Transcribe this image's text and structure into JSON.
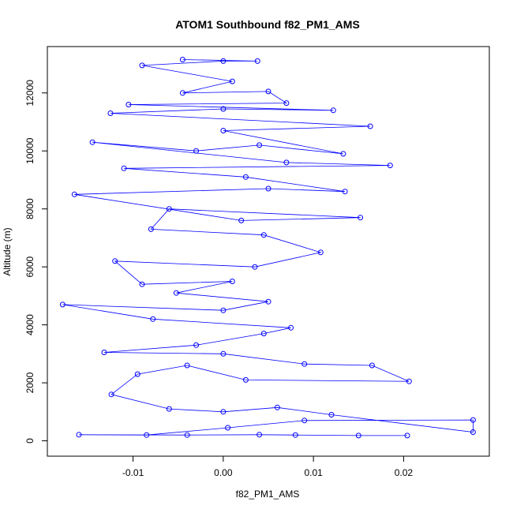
{
  "chart_data": {
    "type": "scatter",
    "title": "ATOM1 Southbound f82_PM1_AMS",
    "xlabel": "f82_PM1_AMS",
    "ylabel": "Altitude (m)",
    "xlim": [
      -0.0195,
      0.0295
    ],
    "ylim": [
      -530,
      13600
    ],
    "x_ticks": [
      -0.01,
      0.0,
      0.01,
      0.02
    ],
    "x_tick_labels": [
      "-0.01",
      "0.00",
      "0.01",
      "0.02"
    ],
    "y_ticks": [
      0,
      2000,
      4000,
      6000,
      8000,
      10000,
      12000
    ],
    "y_tick_labels": [
      "0",
      "2000",
      "4000",
      "6000",
      "8000",
      "10000",
      "12000"
    ],
    "grid": false,
    "colors": {
      "series": "#0000ff",
      "axis": "#000000"
    },
    "series": [
      {
        "marker": "open-circle",
        "line": true,
        "points": [
          [
            0.0204,
            180
          ],
          [
            0.015,
            180
          ],
          [
            0.008,
            200
          ],
          [
            0.004,
            210
          ],
          [
            -0.004,
            200
          ],
          [
            -0.016,
            210
          ],
          [
            -0.0085,
            200
          ],
          [
            0.0005,
            450
          ],
          [
            0.009,
            700
          ],
          [
            0.0277,
            720
          ],
          [
            0.0277,
            300
          ],
          [
            0.012,
            900
          ],
          [
            0.006,
            1150
          ],
          [
            0.0,
            1000
          ],
          [
            -0.006,
            1100
          ],
          [
            -0.0124,
            1600
          ],
          [
            -0.0095,
            2300
          ],
          [
            -0.004,
            2600
          ],
          [
            0.0025,
            2100
          ],
          [
            0.0206,
            2050
          ],
          [
            0.0165,
            2600
          ],
          [
            0.009,
            2650
          ],
          [
            0.0,
            3000
          ],
          [
            -0.0132,
            3050
          ],
          [
            -0.003,
            3300
          ],
          [
            0.0045,
            3700
          ],
          [
            0.0075,
            3900
          ],
          [
            -0.0078,
            4200
          ],
          [
            -0.0178,
            4700
          ],
          [
            0.0,
            4500
          ],
          [
            0.005,
            4800
          ],
          [
            -0.0052,
            5100
          ],
          [
            0.001,
            5500
          ],
          [
            -0.009,
            5400
          ],
          [
            -0.012,
            6200
          ],
          [
            0.0035,
            6000
          ],
          [
            0.0108,
            6500
          ],
          [
            0.0045,
            7100
          ],
          [
            -0.008,
            7300
          ],
          [
            -0.006,
            8000
          ],
          [
            0.0152,
            7700
          ],
          [
            0.002,
            7600
          ],
          [
            -0.0165,
            8500
          ],
          [
            0.005,
            8700
          ],
          [
            0.0135,
            8600
          ],
          [
            0.0025,
            9100
          ],
          [
            -0.011,
            9400
          ],
          [
            0.0185,
            9500
          ],
          [
            0.007,
            9600
          ],
          [
            -0.0145,
            10300
          ],
          [
            -0.003,
            10000
          ],
          [
            0.004,
            10200
          ],
          [
            0.0133,
            9900
          ],
          [
            0.0,
            10700
          ],
          [
            0.0163,
            10850
          ],
          [
            -0.0125,
            11300
          ],
          [
            0.0,
            11450
          ],
          [
            0.0122,
            11400
          ],
          [
            -0.0105,
            11600
          ],
          [
            0.007,
            11650
          ],
          [
            0.005,
            12050
          ],
          [
            -0.0045,
            12000
          ],
          [
            0.001,
            12400
          ],
          [
            -0.009,
            12950
          ],
          [
            0.0,
            13100
          ],
          [
            0.0038,
            13100
          ],
          [
            -0.0045,
            13150
          ]
        ]
      }
    ]
  }
}
